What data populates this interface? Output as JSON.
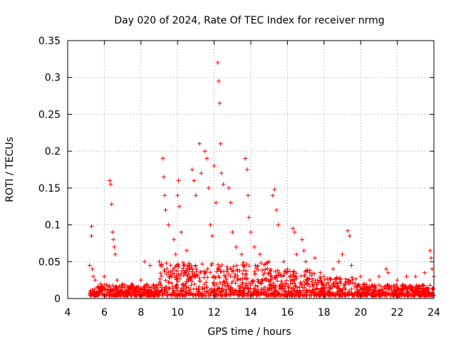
{
  "chart_data": {
    "type": "scatter",
    "title": "Day 020 of 2024, Rate Of TEC Index for receiver nrmg",
    "xlabel": "GPS time / hours",
    "ylabel": "ROTI / TECUs",
    "xlim": [
      4,
      24
    ],
    "ylim": [
      0,
      0.35
    ],
    "x_ticks": [
      4,
      6,
      8,
      10,
      12,
      14,
      16,
      18,
      20,
      22,
      24
    ],
    "y_ticks": [
      0,
      0.05,
      0.1,
      0.15,
      0.2,
      0.25,
      0.3,
      0.35
    ],
    "x_tick_labels": [
      "4",
      "6",
      "8",
      "10",
      "12",
      "14",
      "16",
      "18",
      "20",
      "22",
      "24"
    ],
    "y_tick_labels": [
      "0",
      "0.05",
      "0.1",
      "0.15",
      "0.2",
      "0.25",
      "0.3",
      "0.35"
    ],
    "grid": true,
    "marker": "+",
    "color": "#ff0000",
    "series": [
      {
        "name": "ROTI",
        "x": [
          5.2,
          5.3,
          5.3,
          5.35,
          5.4,
          5.5,
          5.8,
          6.0,
          6.3,
          6.35,
          6.4,
          6.45,
          6.5,
          6.55,
          6.6,
          6.7,
          7.0,
          7.5,
          8.0,
          8.2,
          8.5,
          9.0,
          9.2,
          9.25,
          9.3,
          9.35,
          9.5,
          9.8,
          9.9,
          10.0,
          10.05,
          10.1,
          10.2,
          10.5,
          10.8,
          10.9,
          11.0,
          11.2,
          11.3,
          11.5,
          11.6,
          11.7,
          11.8,
          11.9,
          12.0,
          12.1,
          12.2,
          12.25,
          12.3,
          12.35,
          12.4,
          12.5,
          12.8,
          12.9,
          13.0,
          13.2,
          13.5,
          13.7,
          13.8,
          13.85,
          13.9,
          14.0,
          14.2,
          14.5,
          15.0,
          15.2,
          15.3,
          15.4,
          15.5,
          15.8,
          16.0,
          16.3,
          16.4,
          16.5,
          16.8,
          16.9,
          17.0,
          17.5,
          17.8,
          18.0,
          18.5,
          18.8,
          19.0,
          19.3,
          19.4,
          19.5,
          20.0,
          20.2,
          20.5,
          21.0,
          21.4,
          21.5,
          22.0,
          22.5,
          23.0,
          23.5,
          23.8,
          23.85,
          23.9,
          24.0
        ],
        "y": [
          0.045,
          0.098,
          0.085,
          0.04,
          0.03,
          0.025,
          0.02,
          0.03,
          0.16,
          0.155,
          0.128,
          0.09,
          0.08,
          0.07,
          0.06,
          0.025,
          0.02,
          0.02,
          0.025,
          0.05,
          0.045,
          0.05,
          0.19,
          0.165,
          0.14,
          0.12,
          0.1,
          0.08,
          0.06,
          0.14,
          0.16,
          0.125,
          0.09,
          0.065,
          0.175,
          0.16,
          0.14,
          0.21,
          0.17,
          0.2,
          0.19,
          0.15,
          0.1,
          0.085,
          0.18,
          0.13,
          0.32,
          0.295,
          0.265,
          0.21,
          0.17,
          0.155,
          0.15,
          0.13,
          0.09,
          0.07,
          0.06,
          0.19,
          0.175,
          0.14,
          0.11,
          0.09,
          0.07,
          0.06,
          0.05,
          0.14,
          0.148,
          0.12,
          0.1,
          0.05,
          0.04,
          0.095,
          0.09,
          0.06,
          0.08,
          0.065,
          0.05,
          0.055,
          0.035,
          0.03,
          0.04,
          0.05,
          0.06,
          0.092,
          0.085,
          0.045,
          0.03,
          0.02,
          0.025,
          0.03,
          0.04,
          0.035,
          0.025,
          0.03,
          0.03,
          0.035,
          0.065,
          0.055,
          0.04,
          0.03
        ]
      }
    ]
  }
}
